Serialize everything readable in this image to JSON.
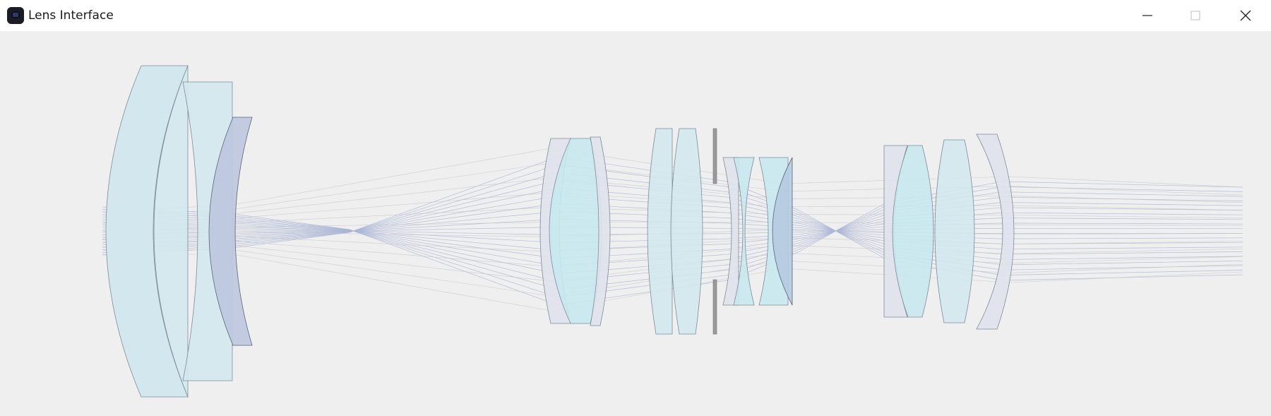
{
  "window": {
    "title": "Lens Interface",
    "icon": "app-lens-icon",
    "controls": [
      "minimize-icon",
      "maximize-icon",
      "close-icon"
    ]
  },
  "colors": {
    "canvas_bg": "#efefef",
    "glass_light_cyan": "#d2e8ee",
    "glass_cyan": "#c6e8ee",
    "glass_lavender": "#e0e2ec",
    "glass_blue": "#bcc6de",
    "glass_steel": "#b6cadf",
    "outline": "#7e8c96",
    "ray": "#a8b4d6",
    "stop": "#9a9a9a"
  },
  "diagram": {
    "type": "optical-lens-ray-trace",
    "lens_groups": [
      {
        "name": "front-group",
        "elements": 3
      },
      {
        "name": "middle-group",
        "elements": 6
      },
      {
        "name": "aperture-stop",
        "elements": 1
      },
      {
        "name": "rear-group",
        "elements": 4
      }
    ]
  }
}
